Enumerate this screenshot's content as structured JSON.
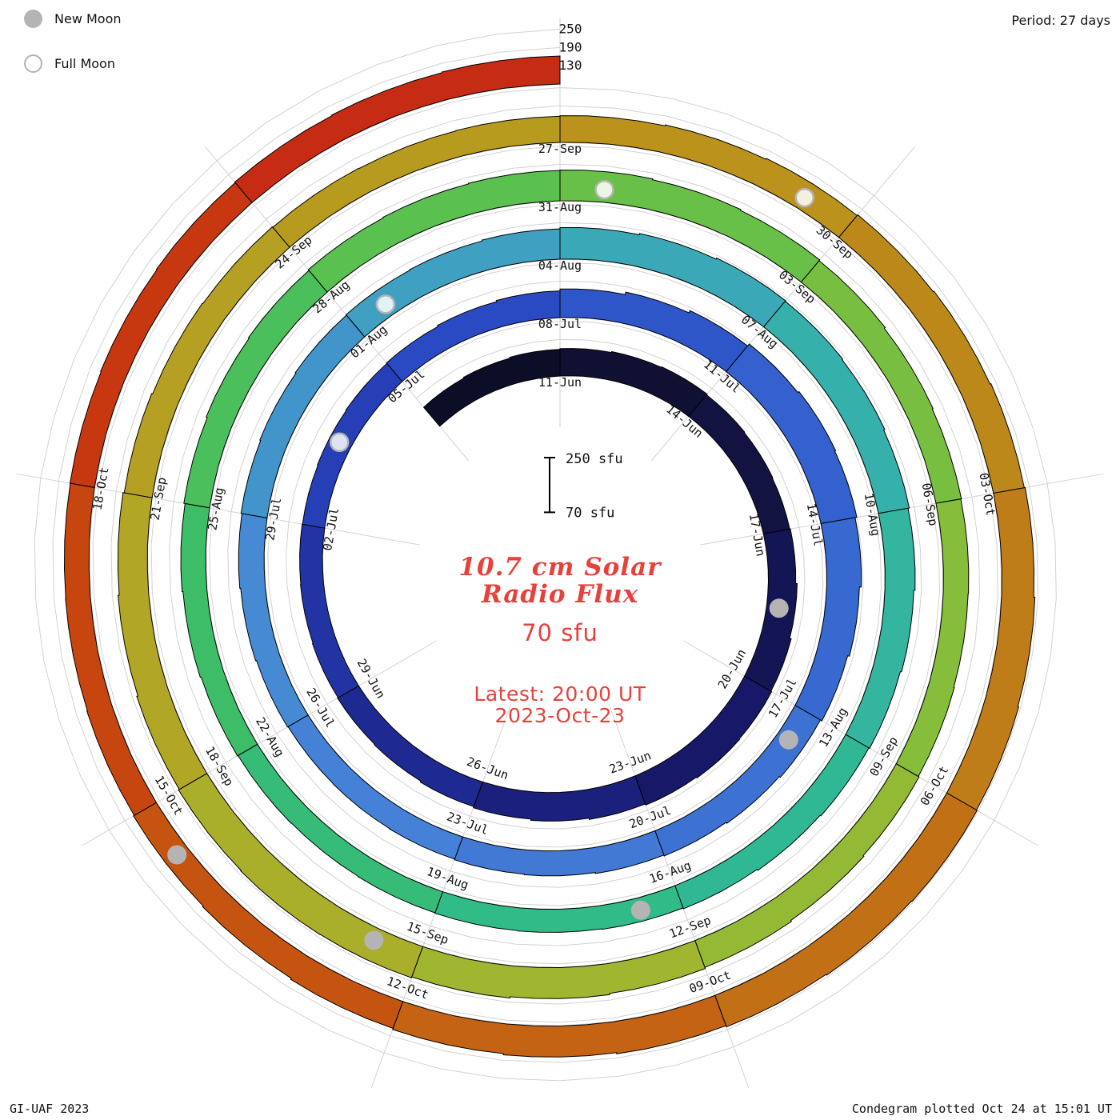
{
  "legend": {
    "new_moon": "New Moon",
    "full_moon": "Full Moon"
  },
  "header": {
    "period": "Period: 27 days"
  },
  "footer": {
    "left": "GI-UAF 2023",
    "right": "Condegram plotted Oct 24 at 15:01 UT"
  },
  "center": {
    "title_line1": "10.7 cm Solar",
    "title_line2": "Radio Flux",
    "subtitle": "70 sfu",
    "latest_line1": "Latest: 20:00 UT",
    "latest_line2": "2023-Oct-23",
    "scale_top": "250 sfu",
    "scale_bottom": "70 sfu"
  },
  "chart_data": {
    "type": "spiral_bar_condegram",
    "title": "10.7 cm Solar Radio Flux",
    "period_days": 27,
    "start_date": "2023-06-08",
    "end_date": "2023-10-23",
    "baseline_sfu": 70,
    "max_sfu": 250,
    "radial_ticks_sfu": [
      130,
      190,
      250
    ],
    "tick_interval_days": 3,
    "date_labels": [
      "11-Jun",
      "14-Jun",
      "17-Jun",
      "20-Jun",
      "23-Jun",
      "26-Jun",
      "29-Jun",
      "02-Jul",
      "05-Jul",
      "08-Jul",
      "11-Jul",
      "14-Jul",
      "17-Jul",
      "20-Jul",
      "23-Jul",
      "26-Jul",
      "29-Jul",
      "01-Aug",
      "04-Aug",
      "07-Aug",
      "10-Aug",
      "13-Aug",
      "16-Aug",
      "19-Aug",
      "22-Aug",
      "25-Aug",
      "28-Aug",
      "31-Aug",
      "03-Sep",
      "06-Sep",
      "09-Sep",
      "12-Sep",
      "15-Sep",
      "18-Sep",
      "21-Sep",
      "24-Sep",
      "27-Sep",
      "30-Sep",
      "03-Oct",
      "06-Oct",
      "09-Oct",
      "12-Oct",
      "15-Oct",
      "18-Oct"
    ],
    "daily_flux_sfu": [
      152,
      155,
      158,
      160,
      163,
      165,
      162,
      160,
      158,
      160,
      165,
      170,
      173,
      175,
      172,
      168,
      164,
      160,
      156,
      152,
      150,
      148,
      146,
      145,
      144,
      146,
      148,
      150,
      154,
      158,
      164,
      172,
      180,
      188,
      193,
      190,
      184,
      178,
      172,
      166,
      162,
      158,
      155,
      152,
      150,
      148,
      147,
      146,
      148,
      151,
      154,
      157,
      160,
      163,
      165,
      167,
      170,
      174,
      178,
      182,
      180,
      177,
      173,
      169,
      165,
      161,
      158,
      155,
      151,
      148,
      146,
      145,
      144,
      143,
      144,
      146,
      149,
      152,
      156,
      160,
      163,
      166,
      168,
      170,
      171,
      168,
      165,
      162,
      158,
      155,
      153,
      152,
      154,
      157,
      160,
      164,
      168,
      172,
      176,
      179,
      180,
      178,
      175,
      171,
      167,
      163,
      160,
      158,
      156,
      155,
      156,
      158,
      161,
      164,
      167,
      170,
      173,
      176,
      180,
      183,
      185,
      183,
      180,
      176,
      172,
      168,
      164,
      160,
      157,
      154,
      152,
      151,
      152,
      154,
      156,
      158,
      160,
      162
    ],
    "new_moon_dates": [
      "2023-06-18",
      "2023-07-17",
      "2023-08-16",
      "2023-09-15",
      "2023-10-14"
    ],
    "full_moon_dates": [
      "2023-07-03",
      "2023-08-01",
      "2023-08-31",
      "2023-09-29"
    ],
    "color_stops": [
      [
        0.0,
        "#0b0b20"
      ],
      [
        0.05,
        "#11123c"
      ],
      [
        0.1,
        "#17186a"
      ],
      [
        0.15,
        "#1f2d99"
      ],
      [
        0.2,
        "#2947c2"
      ],
      [
        0.25,
        "#3461cd"
      ],
      [
        0.3,
        "#3e74d3"
      ],
      [
        0.35,
        "#4785d7"
      ],
      [
        0.4,
        "#3f9fc2"
      ],
      [
        0.45,
        "#35b2a9"
      ],
      [
        0.5,
        "#2eba8f"
      ],
      [
        0.55,
        "#3abd69"
      ],
      [
        0.6,
        "#5bc04e"
      ],
      [
        0.65,
        "#7ebf3e"
      ],
      [
        0.7,
        "#9eb831"
      ],
      [
        0.75,
        "#b2a626"
      ],
      [
        0.8,
        "#b8991e"
      ],
      [
        0.85,
        "#bd8219"
      ],
      [
        0.9,
        "#c36513"
      ],
      [
        0.95,
        "#c7420e"
      ],
      [
        1.0,
        "#c62414"
      ]
    ],
    "colors": {
      "title_red": "#e8413c",
      "moon_gray": "#b4b4b4",
      "grid_gray": "#d2d2d2"
    }
  }
}
